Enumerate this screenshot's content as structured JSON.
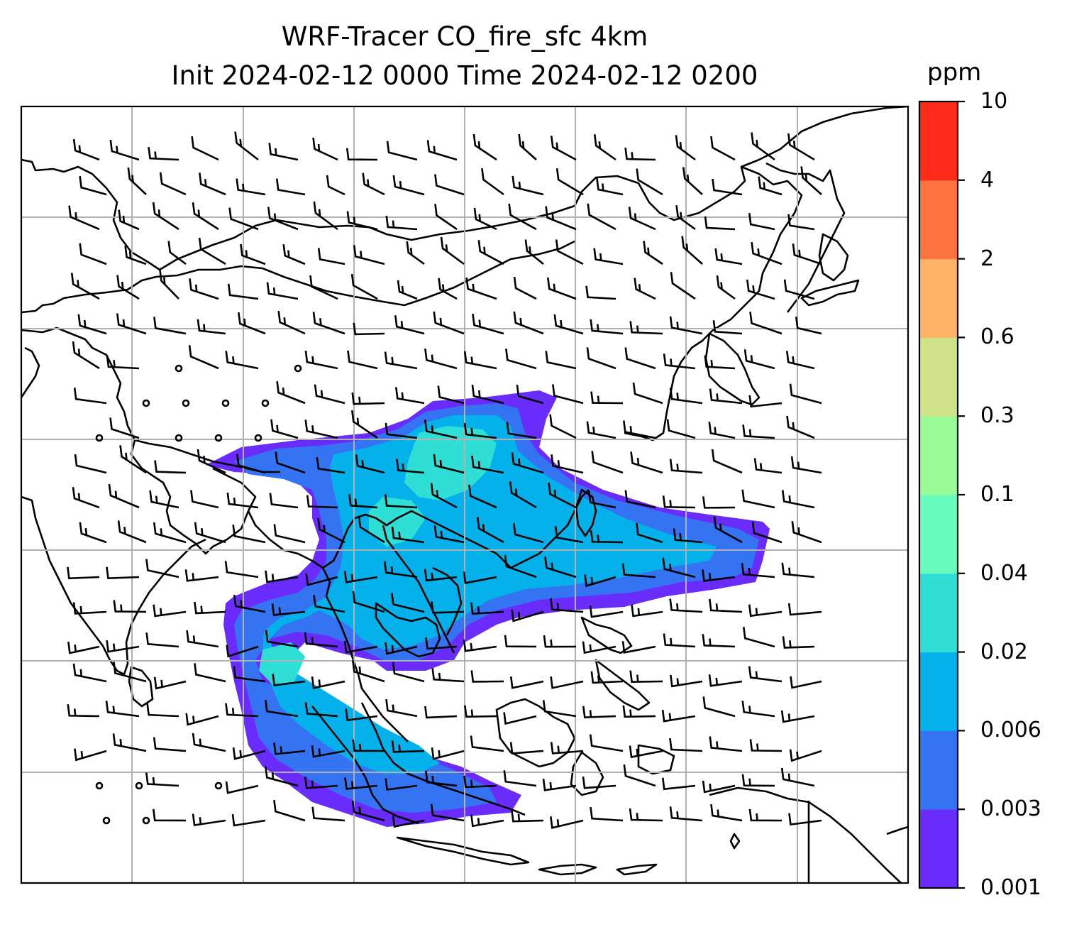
{
  "title": {
    "line1": "WRF-Tracer CO_fire_sfc 4km",
    "line2": "Init 2024-02-12 0000 Time 2024-02-12 0200"
  },
  "colorbar": {
    "unit": "ppm",
    "ticks": [
      "0.001",
      "0.003",
      "0.006",
      "0.02",
      "0.04",
      "0.1",
      "0.3",
      "0.6",
      "2",
      "4",
      "10"
    ],
    "colors": [
      "#6a2cfb",
      "#3474f2",
      "#04b1ea",
      "#2fdfd5",
      "#67fcbe",
      "#9afc98",
      "#cfe288",
      "#fdb265",
      "#fd733f",
      "#fe2b1a"
    ]
  },
  "map": {
    "projection": "regional, Southeast Asia",
    "gridlines": true,
    "coastlines": true,
    "overlay": "wind barbs",
    "plume_colors": {
      "outer": "#6a2cfb",
      "second": "#3474f2",
      "third": "#04b1ea",
      "fourth": "#2fdfd5"
    }
  }
}
